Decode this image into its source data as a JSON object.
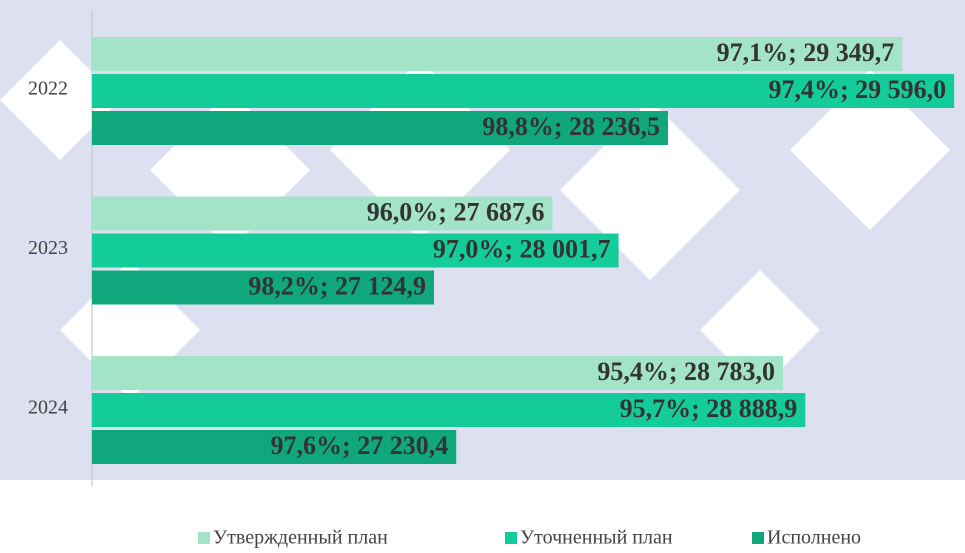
{
  "chart_data": {
    "type": "barh",
    "categories": [
      "2022",
      "2023",
      "2024"
    ],
    "xlim": [
      25500,
      29600
    ],
    "series": [
      {
        "name": "Утвержденный план",
        "color": "#a3e4c9",
        "values": [
          29349.7,
          27687.6,
          28783.0
        ],
        "value_labels": [
          "97,1%; 29 349,7",
          "96,0%; 27 687,6",
          "95,4%; 28 783,0"
        ]
      },
      {
        "name": "Уточненный план",
        "color": "#14cc99",
        "values": [
          29596.0,
          28001.7,
          28888.9
        ],
        "value_labels": [
          "97,4%; 29 596,0",
          "97,0%; 28 001,7",
          "95,7%; 28 888,9"
        ]
      },
      {
        "name": "Исполнено",
        "color": "#10a77c",
        "values": [
          28236.5,
          27124.9,
          27230.4
        ],
        "value_labels": [
          "98,8%; 28 236,5",
          "98,2%; 27 124,9",
          "97,6%; 27 230,4"
        ]
      }
    ]
  }
}
